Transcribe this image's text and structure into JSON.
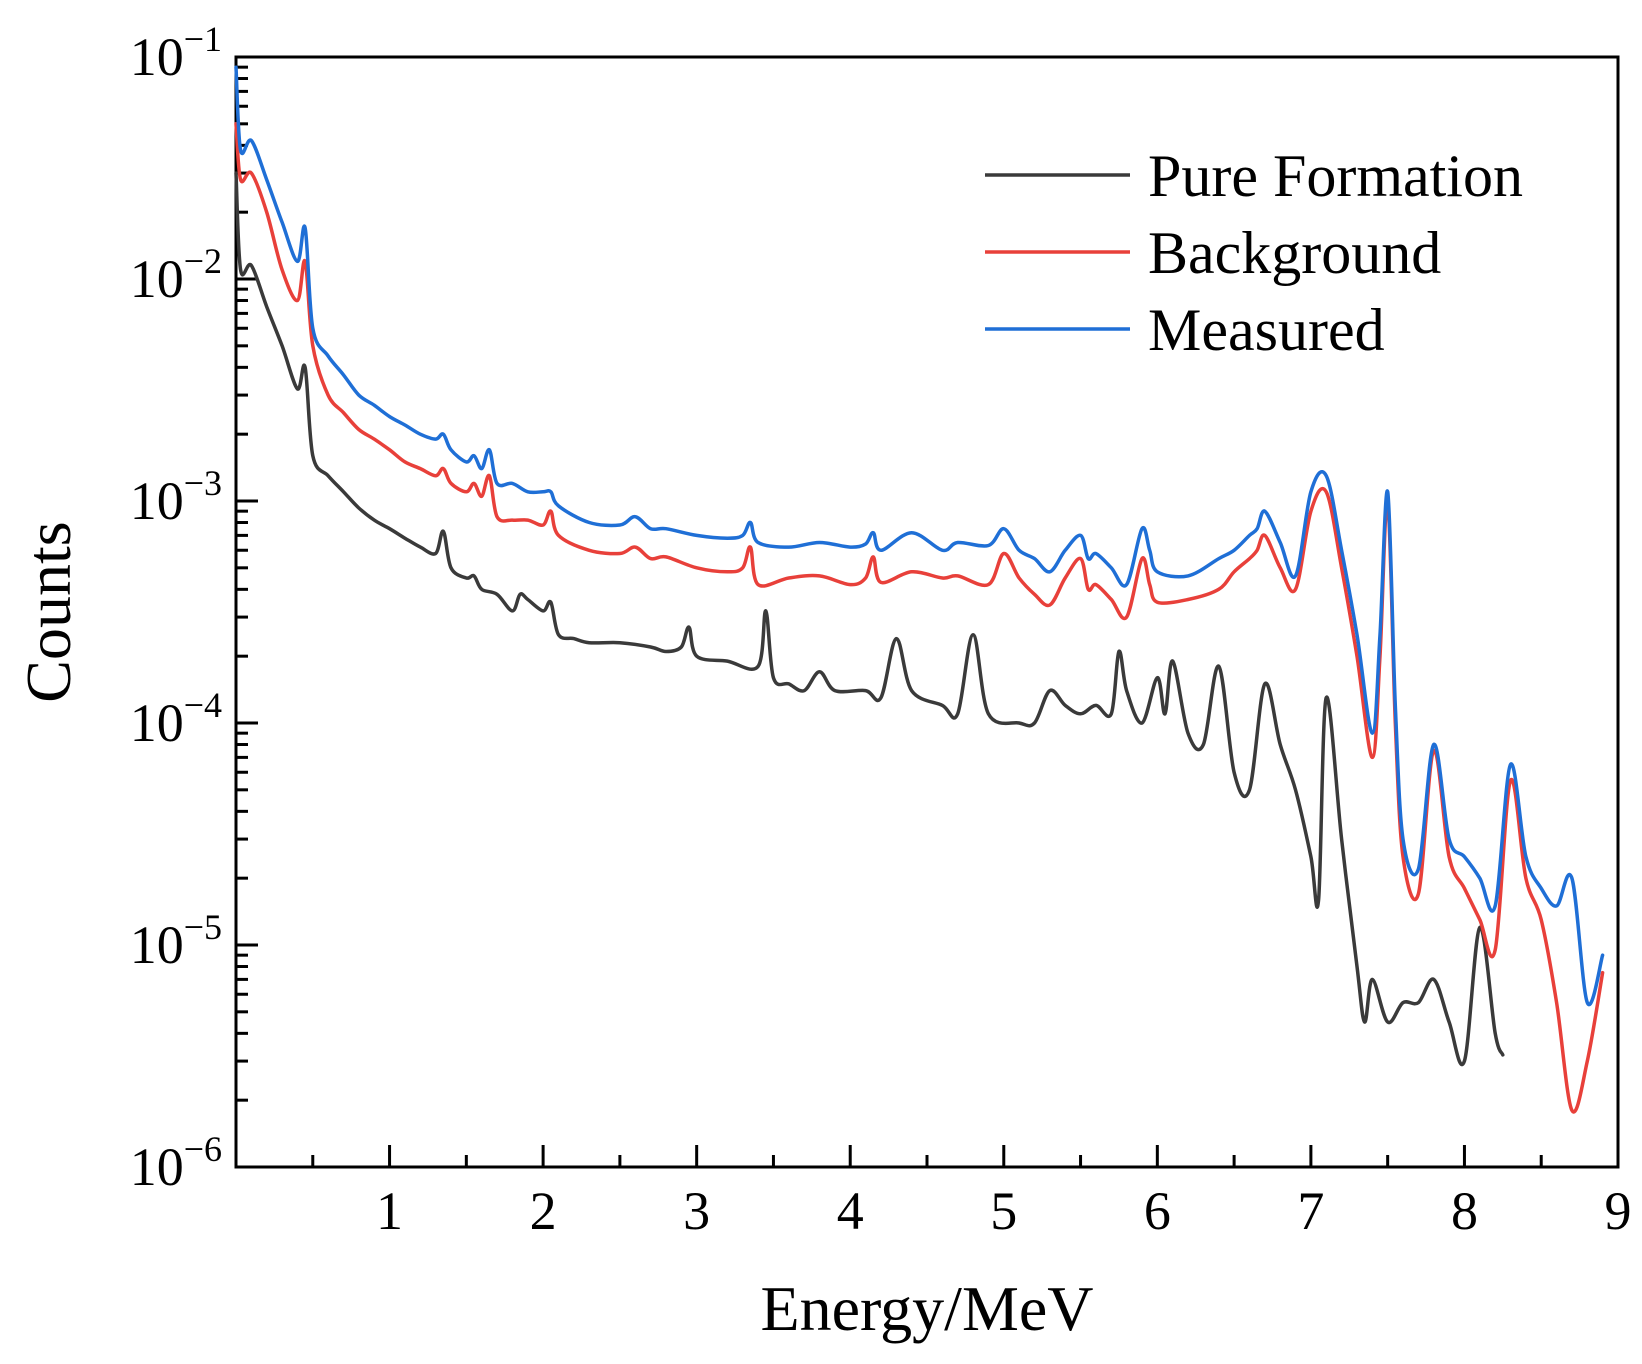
{
  "chart_data": {
    "type": "line",
    "title": "",
    "xlabel": "Energy/MeV",
    "ylabel": "Counts",
    "xlim": [
      0,
      9
    ],
    "ylim": [
      1e-06,
      0.1
    ],
    "yscale": "log",
    "grid": false,
    "legend_position": "top-right",
    "x_ticks": [
      1,
      2,
      3,
      4,
      5,
      6,
      7,
      8,
      9
    ],
    "x_tick_labels": [
      "1",
      "2",
      "3",
      "4",
      "5",
      "6",
      "7",
      "8",
      "9"
    ],
    "y_ticks": [
      {
        "value": 0.1,
        "base": "10",
        "exp": "−1"
      },
      {
        "value": 0.01,
        "base": "10",
        "exp": "−2"
      },
      {
        "value": 0.001,
        "base": "10",
        "exp": "−3"
      },
      {
        "value": 0.0001,
        "base": "10",
        "exp": "−4"
      },
      {
        "value": 1e-05,
        "base": "10",
        "exp": "−5"
      },
      {
        "value": 1e-06,
        "base": "10",
        "exp": "−6"
      }
    ],
    "series": [
      {
        "name": "Pure Formation",
        "color": "#3a3a3a",
        "points": [
          [
            0.0,
            0.03
          ],
          [
            0.03,
            0.011
          ],
          [
            0.1,
            0.0115
          ],
          [
            0.2,
            0.0075
          ],
          [
            0.3,
            0.005
          ],
          [
            0.4,
            0.0032
          ],
          [
            0.45,
            0.004
          ],
          [
            0.5,
            0.0016
          ],
          [
            0.6,
            0.0013
          ],
          [
            0.7,
            0.0011
          ],
          [
            0.8,
            0.00093
          ],
          [
            0.9,
            0.00082
          ],
          [
            1.0,
            0.00075
          ],
          [
            1.1,
            0.00068
          ],
          [
            1.2,
            0.00062
          ],
          [
            1.3,
            0.00058
          ],
          [
            1.35,
            0.00073
          ],
          [
            1.4,
            0.0005
          ],
          [
            1.5,
            0.00045
          ],
          [
            1.55,
            0.00046
          ],
          [
            1.6,
            0.0004
          ],
          [
            1.7,
            0.00038
          ],
          [
            1.8,
            0.00032
          ],
          [
            1.85,
            0.00038
          ],
          [
            1.9,
            0.00036
          ],
          [
            2.0,
            0.00032
          ],
          [
            2.05,
            0.00035
          ],
          [
            2.1,
            0.00025
          ],
          [
            2.2,
            0.00024
          ],
          [
            2.3,
            0.00023
          ],
          [
            2.5,
            0.00023
          ],
          [
            2.7,
            0.00022
          ],
          [
            2.8,
            0.00021
          ],
          [
            2.9,
            0.00022
          ],
          [
            2.95,
            0.00027
          ],
          [
            3.0,
            0.0002
          ],
          [
            3.2,
            0.00019
          ],
          [
            3.4,
            0.00018
          ],
          [
            3.45,
            0.00032
          ],
          [
            3.5,
            0.00016
          ],
          [
            3.6,
            0.00015
          ],
          [
            3.7,
            0.00014
          ],
          [
            3.8,
            0.00017
          ],
          [
            3.9,
            0.00014
          ],
          [
            4.1,
            0.00014
          ],
          [
            4.2,
            0.00013
          ],
          [
            4.3,
            0.00024
          ],
          [
            4.4,
            0.00014
          ],
          [
            4.6,
            0.00012
          ],
          [
            4.7,
            0.00011
          ],
          [
            4.8,
            0.00025
          ],
          [
            4.9,
            0.00011
          ],
          [
            5.1,
            0.0001
          ],
          [
            5.2,
            0.0001
          ],
          [
            5.3,
            0.00014
          ],
          [
            5.4,
            0.00012
          ],
          [
            5.5,
            0.00011
          ],
          [
            5.6,
            0.00012
          ],
          [
            5.7,
            0.00011
          ],
          [
            5.75,
            0.00021
          ],
          [
            5.8,
            0.00014
          ],
          [
            5.9,
            0.0001
          ],
          [
            6.0,
            0.00016
          ],
          [
            6.05,
            0.00011
          ],
          [
            6.1,
            0.00019
          ],
          [
            6.2,
            9e-05
          ],
          [
            6.3,
            8e-05
          ],
          [
            6.4,
            0.00018
          ],
          [
            6.5,
            6e-05
          ],
          [
            6.6,
            5e-05
          ],
          [
            6.7,
            0.00015
          ],
          [
            6.8,
            8e-05
          ],
          [
            6.9,
            5e-05
          ],
          [
            7.0,
            2.5e-05
          ],
          [
            7.05,
            1.6e-05
          ],
          [
            7.1,
            0.00013
          ],
          [
            7.2,
            3e-05
          ],
          [
            7.3,
            8e-06
          ],
          [
            7.35,
            4.5e-06
          ],
          [
            7.4,
            7e-06
          ],
          [
            7.5,
            4.5e-06
          ],
          [
            7.6,
            5.5e-06
          ],
          [
            7.7,
            5.5e-06
          ],
          [
            7.8,
            7e-06
          ],
          [
            7.9,
            4.5e-06
          ],
          [
            8.0,
            3e-06
          ],
          [
            8.1,
            1.2e-05
          ],
          [
            8.2,
            4e-06
          ],
          [
            8.25,
            3.2e-06
          ]
        ]
      },
      {
        "name": "Background",
        "color": "#e8403a",
        "points": [
          [
            0.0,
            0.05
          ],
          [
            0.03,
            0.028
          ],
          [
            0.1,
            0.03
          ],
          [
            0.2,
            0.02
          ],
          [
            0.3,
            0.011
          ],
          [
            0.4,
            0.008
          ],
          [
            0.45,
            0.012
          ],
          [
            0.5,
            0.005
          ],
          [
            0.6,
            0.003
          ],
          [
            0.7,
            0.0025
          ],
          [
            0.8,
            0.0021
          ],
          [
            0.9,
            0.0019
          ],
          [
            1.0,
            0.0017
          ],
          [
            1.1,
            0.0015
          ],
          [
            1.2,
            0.0014
          ],
          [
            1.3,
            0.0013
          ],
          [
            1.35,
            0.0014
          ],
          [
            1.4,
            0.0012
          ],
          [
            1.5,
            0.0011
          ],
          [
            1.55,
            0.0012
          ],
          [
            1.6,
            0.00105
          ],
          [
            1.65,
            0.0013
          ],
          [
            1.7,
            0.00085
          ],
          [
            1.8,
            0.00082
          ],
          [
            1.9,
            0.00082
          ],
          [
            2.0,
            0.00078
          ],
          [
            2.05,
            0.0009
          ],
          [
            2.1,
            0.0007
          ],
          [
            2.3,
            0.0006
          ],
          [
            2.5,
            0.00058
          ],
          [
            2.6,
            0.00062
          ],
          [
            2.7,
            0.00055
          ],
          [
            2.8,
            0.00056
          ],
          [
            3.0,
            0.0005
          ],
          [
            3.2,
            0.00048
          ],
          [
            3.3,
            0.0005
          ],
          [
            3.35,
            0.00062
          ],
          [
            3.4,
            0.00042
          ],
          [
            3.6,
            0.00045
          ],
          [
            3.8,
            0.00046
          ],
          [
            4.0,
            0.00042
          ],
          [
            4.1,
            0.00045
          ],
          [
            4.15,
            0.00056
          ],
          [
            4.2,
            0.00043
          ],
          [
            4.4,
            0.00048
          ],
          [
            4.6,
            0.00045
          ],
          [
            4.7,
            0.00046
          ],
          [
            4.9,
            0.00042
          ],
          [
            5.0,
            0.00058
          ],
          [
            5.1,
            0.00045
          ],
          [
            5.2,
            0.00038
          ],
          [
            5.3,
            0.00034
          ],
          [
            5.4,
            0.00045
          ],
          [
            5.5,
            0.00055
          ],
          [
            5.55,
            0.0004
          ],
          [
            5.6,
            0.00042
          ],
          [
            5.7,
            0.00036
          ],
          [
            5.8,
            0.0003
          ],
          [
            5.9,
            0.00055
          ],
          [
            5.95,
            0.00042
          ],
          [
            6.0,
            0.00035
          ],
          [
            6.2,
            0.00036
          ],
          [
            6.4,
            0.0004
          ],
          [
            6.5,
            0.00048
          ],
          [
            6.6,
            0.00055
          ],
          [
            6.65,
            0.0006
          ],
          [
            6.7,
            0.0007
          ],
          [
            6.8,
            0.0005
          ],
          [
            6.9,
            0.0004
          ],
          [
            7.0,
            0.0009
          ],
          [
            7.1,
            0.0011
          ],
          [
            7.2,
            0.0005
          ],
          [
            7.3,
            0.0002
          ],
          [
            7.4,
            7e-05
          ],
          [
            7.45,
            0.0002
          ],
          [
            7.5,
            0.001
          ],
          [
            7.55,
            0.0001
          ],
          [
            7.6,
            2.5e-05
          ],
          [
            7.7,
            1.7e-05
          ],
          [
            7.8,
            7.5e-05
          ],
          [
            7.9,
            2.5e-05
          ],
          [
            8.0,
            1.8e-05
          ],
          [
            8.1,
            1.3e-05
          ],
          [
            8.2,
            9.5e-06
          ],
          [
            8.3,
            5.5e-05
          ],
          [
            8.4,
            2e-05
          ],
          [
            8.5,
            1.3e-05
          ],
          [
            8.6,
            5.5e-06
          ],
          [
            8.7,
            1.8e-06
          ],
          [
            8.8,
            3e-06
          ],
          [
            8.9,
            7.5e-06
          ]
        ]
      },
      {
        "name": "Measured",
        "color": "#1f6fd6",
        "points": [
          [
            0.0,
            0.09
          ],
          [
            0.03,
            0.038
          ],
          [
            0.1,
            0.042
          ],
          [
            0.2,
            0.028
          ],
          [
            0.3,
            0.018
          ],
          [
            0.4,
            0.012
          ],
          [
            0.45,
            0.017
          ],
          [
            0.5,
            0.006
          ],
          [
            0.6,
            0.0045
          ],
          [
            0.7,
            0.0037
          ],
          [
            0.8,
            0.003
          ],
          [
            0.9,
            0.0027
          ],
          [
            1.0,
            0.0024
          ],
          [
            1.1,
            0.0022
          ],
          [
            1.2,
            0.002
          ],
          [
            1.3,
            0.0019
          ],
          [
            1.35,
            0.002
          ],
          [
            1.4,
            0.0017
          ],
          [
            1.5,
            0.0015
          ],
          [
            1.55,
            0.0016
          ],
          [
            1.6,
            0.0014
          ],
          [
            1.65,
            0.0017
          ],
          [
            1.7,
            0.0012
          ],
          [
            1.8,
            0.0012
          ],
          [
            1.9,
            0.0011
          ],
          [
            2.0,
            0.0011
          ],
          [
            2.05,
            0.0011
          ],
          [
            2.1,
            0.00095
          ],
          [
            2.3,
            0.0008
          ],
          [
            2.5,
            0.00078
          ],
          [
            2.6,
            0.00085
          ],
          [
            2.7,
            0.00075
          ],
          [
            2.8,
            0.00075
          ],
          [
            3.0,
            0.0007
          ],
          [
            3.2,
            0.00068
          ],
          [
            3.3,
            0.0007
          ],
          [
            3.35,
            0.0008
          ],
          [
            3.4,
            0.00065
          ],
          [
            3.6,
            0.00062
          ],
          [
            3.8,
            0.00065
          ],
          [
            4.0,
            0.00062
          ],
          [
            4.1,
            0.00064
          ],
          [
            4.15,
            0.00072
          ],
          [
            4.2,
            0.0006
          ],
          [
            4.4,
            0.00072
          ],
          [
            4.6,
            0.0006
          ],
          [
            4.7,
            0.00065
          ],
          [
            4.9,
            0.00063
          ],
          [
            5.0,
            0.00075
          ],
          [
            5.1,
            0.0006
          ],
          [
            5.2,
            0.00055
          ],
          [
            5.3,
            0.00048
          ],
          [
            5.4,
            0.0006
          ],
          [
            5.5,
            0.0007
          ],
          [
            5.55,
            0.00055
          ],
          [
            5.6,
            0.00058
          ],
          [
            5.7,
            0.0005
          ],
          [
            5.8,
            0.00042
          ],
          [
            5.9,
            0.00075
          ],
          [
            5.95,
            0.0006
          ],
          [
            6.0,
            0.00048
          ],
          [
            6.2,
            0.00046
          ],
          [
            6.4,
            0.00055
          ],
          [
            6.5,
            0.0006
          ],
          [
            6.6,
            0.0007
          ],
          [
            6.65,
            0.00075
          ],
          [
            6.7,
            0.0009
          ],
          [
            6.8,
            0.00065
          ],
          [
            6.9,
            0.00046
          ],
          [
            7.0,
            0.0011
          ],
          [
            7.1,
            0.0013
          ],
          [
            7.2,
            0.0006
          ],
          [
            7.3,
            0.00025
          ],
          [
            7.4,
            9e-05
          ],
          [
            7.45,
            0.00025
          ],
          [
            7.5,
            0.0011
          ],
          [
            7.55,
            0.00012
          ],
          [
            7.6,
            3e-05
          ],
          [
            7.7,
            2.2e-05
          ],
          [
            7.8,
            8e-05
          ],
          [
            7.9,
            3e-05
          ],
          [
            8.0,
            2.5e-05
          ],
          [
            8.1,
            2e-05
          ],
          [
            8.2,
            1.5e-05
          ],
          [
            8.3,
            6.5e-05
          ],
          [
            8.4,
            2.5e-05
          ],
          [
            8.5,
            1.8e-05
          ],
          [
            8.6,
            1.5e-05
          ],
          [
            8.7,
            2e-05
          ],
          [
            8.8,
            5.5e-06
          ],
          [
            8.9,
            9e-06
          ]
        ]
      }
    ]
  }
}
